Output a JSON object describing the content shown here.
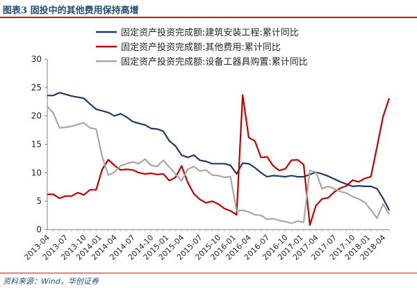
{
  "figure": {
    "title": "图表3 固投中的其他费用保持高增",
    "source": "资料来源：Wind，华创证券"
  },
  "chart_data": {
    "type": "line",
    "title": "",
    "xlabel": "",
    "ylabel": "",
    "ylim": [
      0,
      30
    ],
    "yticks": [
      0,
      5,
      10,
      15,
      20,
      25,
      30
    ],
    "grid": false,
    "legend_position": "top-right",
    "x": [
      "2013-04",
      "2013-05",
      "2013-06",
      "2013-07",
      "2013-08",
      "2013-09",
      "2013-10",
      "2013-11",
      "2013-12",
      "2014-02",
      "2014-03",
      "2014-04",
      "2014-05",
      "2014-06",
      "2014-07",
      "2014-08",
      "2014-09",
      "2014-10",
      "2014-11",
      "2014-12",
      "2015-02",
      "2015-03",
      "2015-04",
      "2015-05",
      "2015-06",
      "2015-07",
      "2015-08",
      "2015-09",
      "2015-10",
      "2015-11",
      "2015-12",
      "2016-02",
      "2016-03",
      "2016-04",
      "2016-05",
      "2016-06",
      "2016-07",
      "2016-08",
      "2016-09",
      "2016-10",
      "2016-11",
      "2016-12",
      "2017-02",
      "2017-03",
      "2017-04",
      "2017-05",
      "2017-06",
      "2017-07",
      "2017-08",
      "2017-09",
      "2017-10",
      "2017-11",
      "2017-12",
      "2018-02",
      "2018-03",
      "2018-04",
      "2018-05"
    ],
    "xtick_labels": [
      "2013-04",
      "2013-07",
      "2013-10",
      "2014-01",
      "2014-04",
      "2014-07",
      "2014-10",
      "2015-01",
      "2015-04",
      "2015-07",
      "2015-10",
      "2016-01",
      "2016-04",
      "2016-07",
      "2016-10",
      "2017-01",
      "2017-04",
      "2017-07",
      "2017-10",
      "2018-01",
      "2018-04"
    ],
    "series": [
      {
        "name": "固定资产投资完成额:建筑安装工程:累计同比",
        "color": "#1f3864",
        "values": [
          23.6,
          23.6,
          24.1,
          23.8,
          23.5,
          23.3,
          23.1,
          22.1,
          21.2,
          20.9,
          20.6,
          20.0,
          20.4,
          19.8,
          19.0,
          18.7,
          18.4,
          17.8,
          17.7,
          17.3,
          15.6,
          14.7,
          13.1,
          12.7,
          13.1,
          12.2,
          12.0,
          11.6,
          11.6,
          11.6,
          11.3,
          9.8,
          11.7,
          11.6,
          10.9,
          10.0,
          9.3,
          9.5,
          9.4,
          9.3,
          9.5,
          9.3,
          9.3,
          9.7,
          10.1,
          9.8,
          9.4,
          8.9,
          8.4,
          8.0,
          7.6,
          7.7,
          7.6,
          7.6,
          7.2,
          5.5,
          3.4
        ]
      },
      {
        "name": "固定资产投资完成额:其他费用:累计同比",
        "color": "#c00000",
        "values": [
          6.2,
          6.2,
          5.5,
          5.9,
          5.9,
          6.5,
          6.1,
          7.0,
          7.0,
          10.6,
          12.3,
          11.3,
          10.5,
          10.6,
          10.5,
          10.0,
          9.8,
          9.9,
          9.7,
          9.8,
          8.6,
          9.2,
          11.2,
          8.3,
          6.3,
          5.3,
          4.7,
          5.0,
          4.5,
          3.7,
          3.3,
          2.6,
          23.7,
          16.2,
          15.6,
          12.7,
          12.8,
          11.2,
          10.4,
          10.7,
          12.2,
          12.3,
          11.4,
          0.8,
          4.2,
          5.4,
          5.6,
          6.6,
          7.3,
          7.7,
          8.7,
          8.4,
          9.0,
          9.3,
          14.5,
          19.9,
          23.1
        ]
      },
      {
        "name": "固定资产投资完成额:设备工器具购置:累计同比",
        "color": "#a6a6a6",
        "values": [
          21.7,
          20.5,
          17.9,
          18.0,
          18.2,
          18.5,
          18.8,
          17.9,
          17.7,
          12.8,
          9.6,
          10.1,
          11.2,
          11.6,
          11.9,
          11.6,
          12.4,
          11.3,
          11.1,
          12.2,
          11.0,
          9.8,
          8.6,
          10.6,
          11.1,
          10.3,
          10.5,
          9.6,
          9.5,
          9.2,
          9.3,
          3.3,
          3.4,
          3.1,
          2.6,
          2.5,
          1.8,
          1.9,
          1.6,
          1.4,
          1.1,
          1.5,
          1.3,
          10.4,
          10.1,
          7.2,
          7.6,
          7.2,
          6.7,
          6.4,
          5.8,
          5.4,
          4.8,
          3.5,
          2.0,
          4.5,
          2.7
        ]
      }
    ]
  }
}
